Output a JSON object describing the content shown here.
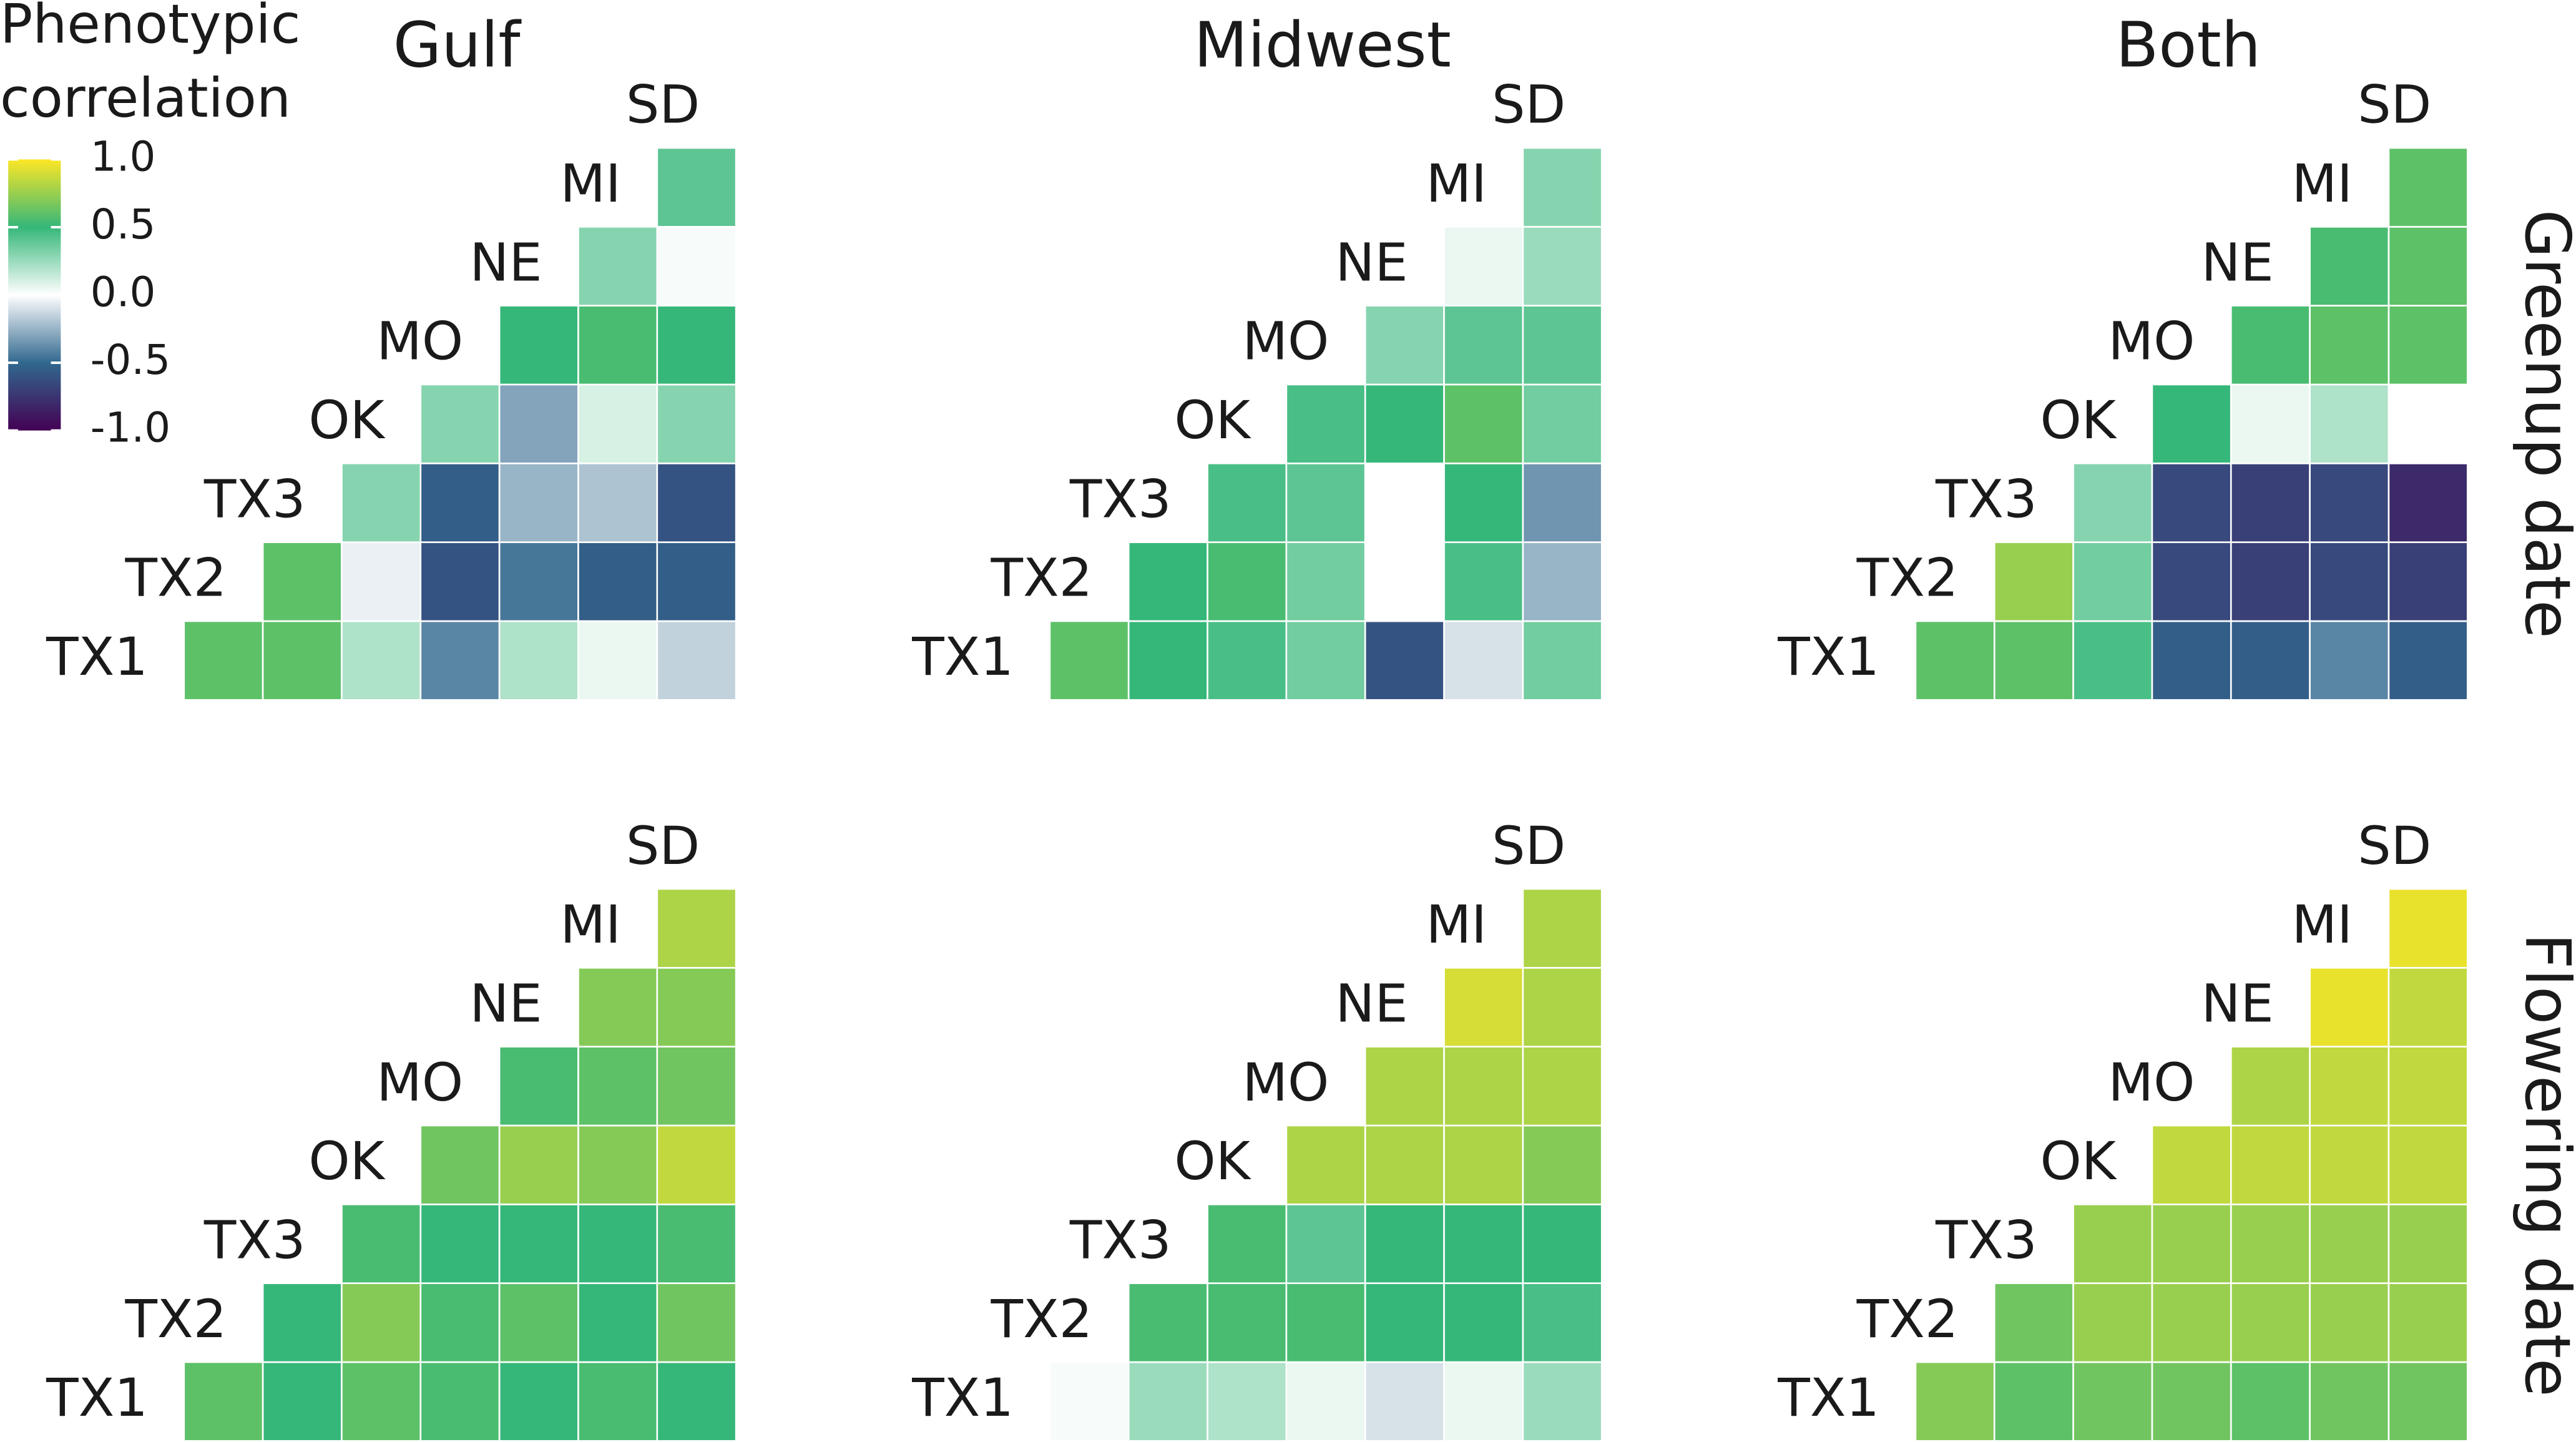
{
  "chart_data": {
    "type": "heatmap",
    "legend_title": [
      "Phenotypic",
      "correlation"
    ],
    "color_stops": [
      {
        "value": -1,
        "color": "#440154"
      },
      {
        "value": -0.5,
        "color": "#31688e"
      },
      {
        "value": 0,
        "color": "#ffffff"
      },
      {
        "value": 0.5,
        "color": "#35b779"
      },
      {
        "value": 1,
        "color": "#fde725"
      }
    ],
    "clim": [
      -1,
      1
    ],
    "cticks": [
      {
        "value": 1,
        "label": "1.0"
      },
      0.5,
      {
        "value": 0,
        "label": "0.0"
      },
      -0.5,
      {
        "value": -1,
        "label": "-1.0"
      }
    ],
    "column_titles": [
      "Gulf",
      "Midwest",
      "Both"
    ],
    "row_titles": [
      "Greenup date",
      "Flowering date"
    ],
    "sites": [
      "TX1",
      "TX2",
      "TX3",
      "OK",
      "MO",
      "NE",
      "MI",
      "SD"
    ],
    "panels": [
      {
        "values": [
          [
            0.6,
            0.6,
            0.2,
            -0.4,
            0.2,
            0.05,
            -0.15
          ],
          [
            0.6,
            -0.05,
            -0.6,
            -0.45,
            -0.55,
            -0.55
          ],
          [
            0.3,
            -0.55,
            -0.25,
            -0.2,
            -0.6
          ],
          [
            0.3,
            -0.3,
            0.1,
            0.3
          ],
          [
            0.5,
            0.55,
            0.5
          ],
          [
            0.3,
            0.02
          ],
          [
            0.4
          ]
        ]
      },
      {
        "values": [
          [
            0.6,
            0.5,
            0.45,
            0.35,
            -0.6,
            -0.1,
            0.35
          ],
          [
            0.5,
            0.55,
            0.35,
            0.0,
            0.45,
            -0.25
          ],
          [
            0.45,
            0.4,
            0.0,
            0.5,
            -0.35
          ],
          [
            0.45,
            0.5,
            0.6,
            0.35
          ],
          [
            0.3,
            0.4,
            0.4
          ],
          [
            0.05,
            0.25
          ],
          [
            0.3
          ]
        ]
      },
      {
        "values": [
          [
            0.6,
            0.6,
            0.45,
            -0.55,
            -0.55,
            -0.4,
            -0.55
          ],
          [
            0.75,
            0.35,
            -0.65,
            -0.7,
            -0.65,
            -0.7
          ],
          [
            0.3,
            -0.65,
            -0.7,
            -0.65,
            -0.8
          ],
          [
            0.5,
            0.05,
            0.2,
            0.0
          ],
          [
            0.55,
            0.6,
            0.6
          ],
          [
            0.55,
            0.6
          ],
          [
            0.6
          ]
        ]
      },
      {
        "values": [
          [
            0.6,
            0.5,
            0.6,
            0.55,
            0.5,
            0.55,
            0.5
          ],
          [
            0.5,
            0.7,
            0.55,
            0.6,
            0.5,
            0.65
          ],
          [
            0.55,
            0.5,
            0.5,
            0.5,
            0.55
          ],
          [
            0.65,
            0.75,
            0.7,
            0.85
          ],
          [
            0.55,
            0.6,
            0.65
          ],
          [
            0.7,
            0.7
          ],
          [
            0.8
          ]
        ]
      },
      {
        "values": [
          [
            0.02,
            0.25,
            0.2,
            0.05,
            -0.1,
            0.05,
            0.25
          ],
          [
            0.55,
            0.55,
            0.55,
            0.5,
            0.5,
            0.45
          ],
          [
            0.55,
            0.4,
            0.5,
            0.5,
            0.5
          ],
          [
            0.8,
            0.8,
            0.8,
            0.7
          ],
          [
            0.8,
            0.8,
            0.8
          ],
          [
            0.9,
            0.8
          ],
          [
            0.8
          ]
        ]
      },
      {
        "values": [
          [
            0.7,
            0.6,
            0.65,
            0.65,
            0.6,
            0.65,
            0.65
          ],
          [
            0.65,
            0.75,
            0.75,
            0.75,
            0.75,
            0.75
          ],
          [
            0.75,
            0.75,
            0.75,
            0.75,
            0.75
          ],
          [
            0.85,
            0.85,
            0.85,
            0.85
          ],
          [
            0.8,
            0.85,
            0.85
          ],
          [
            0.95,
            0.85
          ],
          [
            0.95
          ]
        ]
      }
    ]
  }
}
